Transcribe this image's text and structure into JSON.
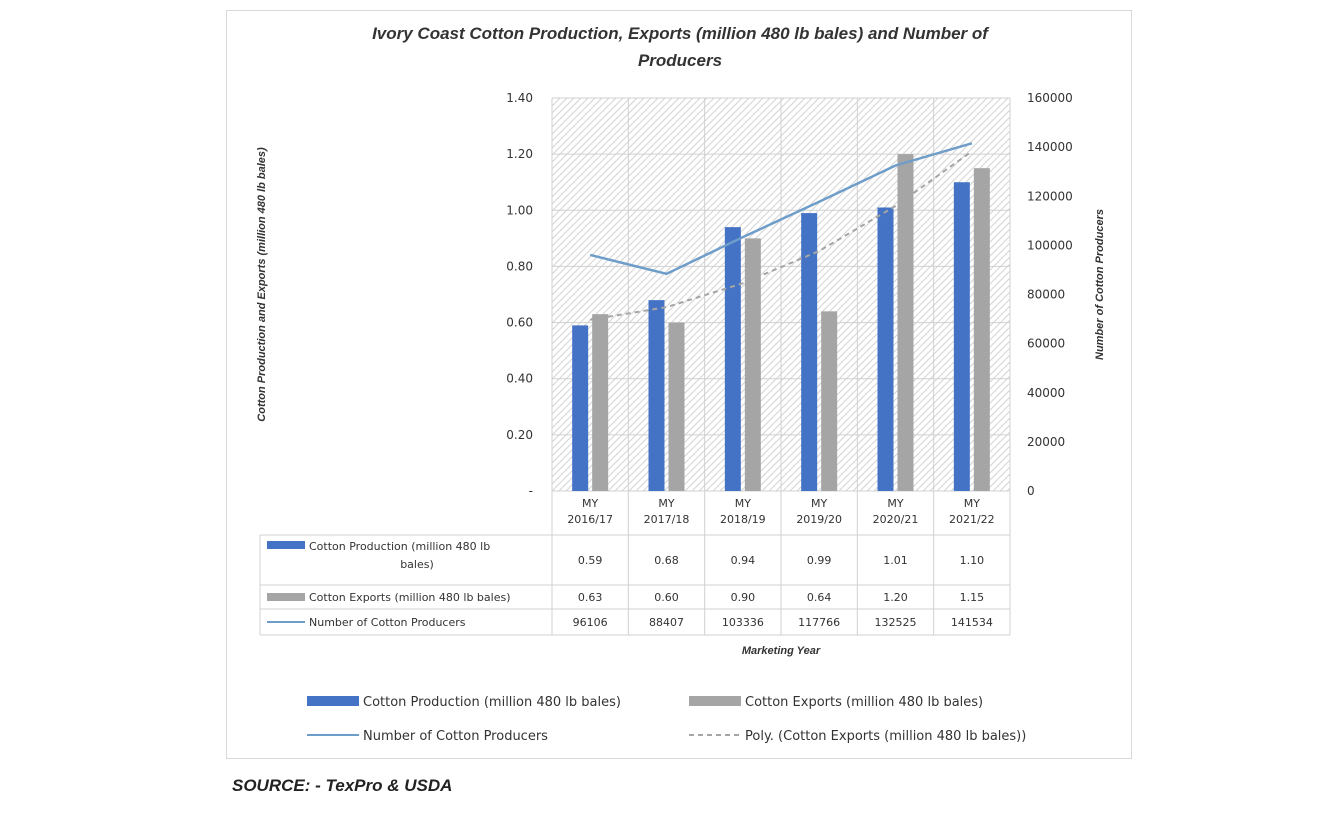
{
  "chart_data": {
    "type": "bar",
    "title_line1": "Ivory Coast Cotton Production, Exports (million 480 lb bales) and Number of",
    "title_line2": "Producers",
    "xlabel": "Marketing Year",
    "ylabel": "Cotton Production and Exports (million 480 lb bales)",
    "y2label": "Number of Cotton Producers",
    "ylim": [
      0,
      1.4
    ],
    "y2lim": [
      0,
      160000
    ],
    "yticks": [
      "-",
      "0.20",
      "0.40",
      "0.60",
      "0.80",
      "1.00",
      "1.20",
      "1.40"
    ],
    "y2ticks": [
      "0",
      "20000",
      "40000",
      "60000",
      "80000",
      "100000",
      "120000",
      "140000",
      "160000"
    ],
    "categories": [
      [
        "MY",
        "2016/17"
      ],
      [
        "MY",
        "2017/18"
      ],
      [
        "MY",
        "2018/19"
      ],
      [
        "MY",
        "2019/20"
      ],
      [
        "MY",
        "2020/21"
      ],
      [
        "MY",
        "2021/22"
      ]
    ],
    "series": [
      {
        "name": "Cotton Production (million 480 lb bales)",
        "table_name": [
          "Cotton Production (million 480 lb",
          "bales)"
        ],
        "type": "bar",
        "axis": "left",
        "color": "#4472C4",
        "values": [
          0.59,
          0.68,
          0.94,
          0.99,
          1.01,
          1.1
        ],
        "labels": [
          "0.59",
          "0.68",
          "0.94",
          "0.99",
          "1.01",
          "1.10"
        ]
      },
      {
        "name": "Cotton Exports (million 480 lb bales)",
        "table_name": [
          "Cotton Exports (million 480 lb bales)"
        ],
        "type": "bar",
        "axis": "left",
        "color": "#A5A5A5",
        "values": [
          0.63,
          0.6,
          0.9,
          0.64,
          1.2,
          1.15
        ],
        "labels": [
          "0.63",
          "0.60",
          "0.90",
          "0.64",
          "1.20",
          "1.15"
        ]
      },
      {
        "name": "Number of Cotton Producers",
        "table_name": [
          "Number of Cotton Producers"
        ],
        "type": "line",
        "axis": "right",
        "color": "#6E9DC9",
        "values": [
          96106,
          88407,
          103336,
          117766,
          132525,
          141534
        ],
        "labels": [
          "96106",
          "88407",
          "103336",
          "117766",
          "132525",
          "141534"
        ]
      }
    ],
    "trendline": {
      "name": "Poly. (Cotton Exports (million 480 lb bales))",
      "color": "#A5A5A5",
      "style": "dashed",
      "axis": "left",
      "values": [
        0.61,
        0.655,
        0.74,
        0.855,
        1.015,
        1.21
      ]
    },
    "grid": true,
    "legend_position": "bottom",
    "data_table": true
  },
  "source": "SOURCE: - TexPro & USDA"
}
